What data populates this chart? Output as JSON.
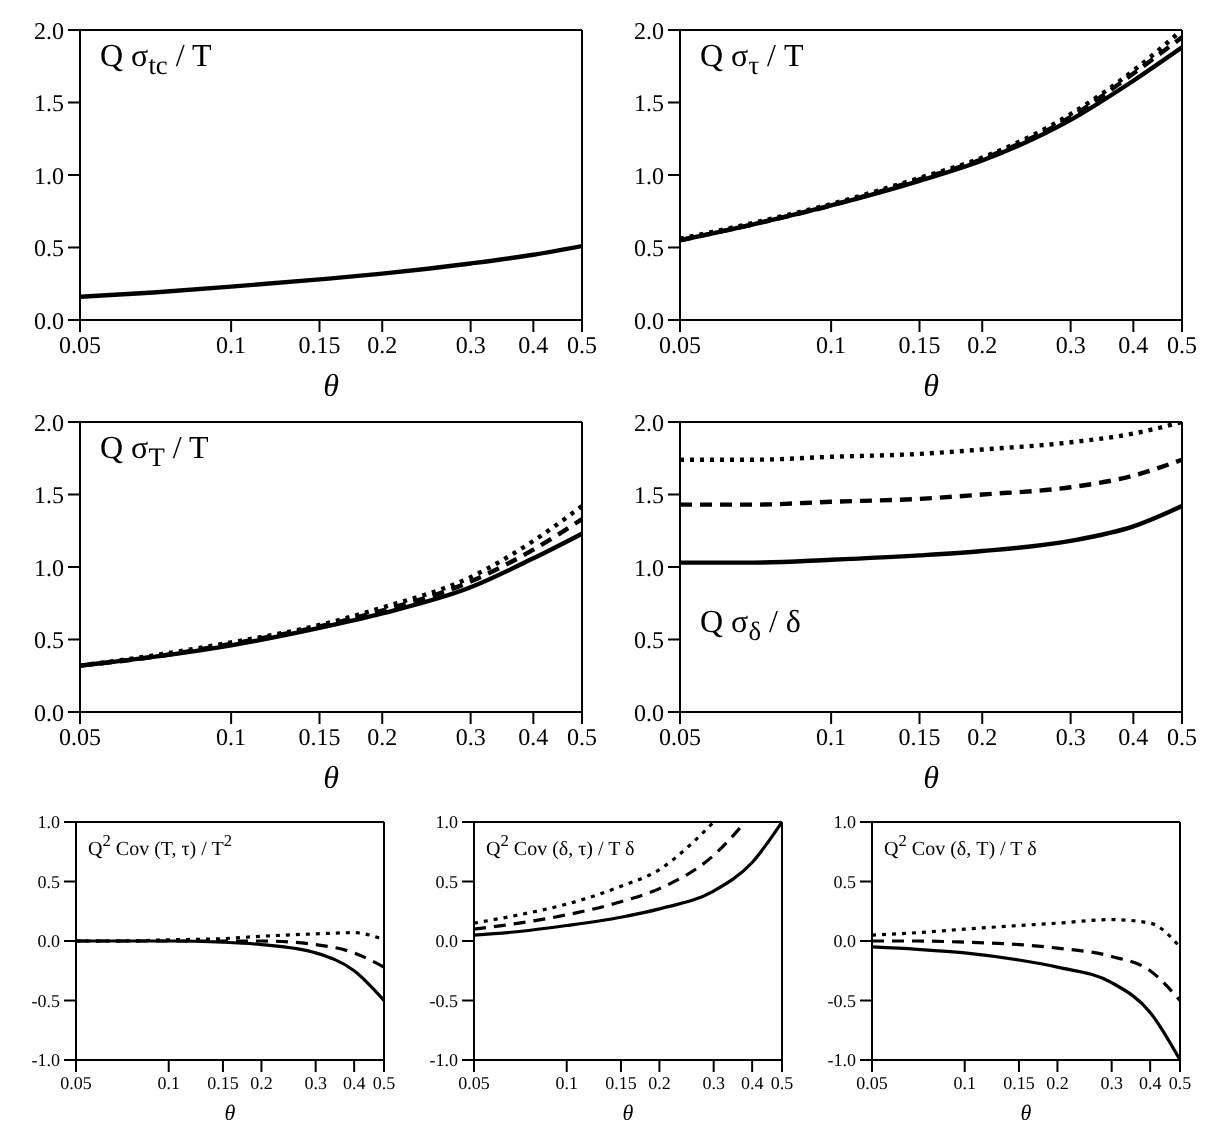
{
  "chart_data": [
    {
      "type": "line",
      "ylabel": "Q σ$_{tc}$ / T",
      "xlabel": "θ",
      "log": "x",
      "xlim": [
        0.05,
        0.5
      ],
      "xticks": [
        0.05,
        0.1,
        0.15,
        0.2,
        0.3,
        0.4,
        0.5
      ],
      "ylim": [
        0,
        2
      ],
      "yticks": [
        {
          "value": 0,
          "label": "0.0"
        },
        {
          "value": 0.5,
          "label": "0.5"
        },
        {
          "value": 1,
          "label": "1.0"
        },
        {
          "value": 1.5,
          "label": "1.5"
        },
        {
          "value": 2,
          "label": "2.0"
        }
      ],
      "grid": false,
      "legend": false,
      "x": [
        0.05,
        0.07,
        0.1,
        0.15,
        0.2,
        0.3,
        0.4,
        0.5
      ],
      "series": [
        {
          "color": "#000000",
          "line_style": "solid",
          "values": [
            0.16,
            0.19,
            0.23,
            0.28,
            0.32,
            0.39,
            0.45,
            0.51
          ]
        }
      ]
    },
    {
      "type": "line",
      "ylabel": "Q σ$_{τ}$ / T",
      "xlabel": "θ",
      "log": "x",
      "xlim": [
        0.05,
        0.5
      ],
      "xticks": [
        0.05,
        0.1,
        0.15,
        0.2,
        0.3,
        0.4,
        0.5
      ],
      "ylim": [
        0,
        2
      ],
      "yticks": [
        {
          "value": 0,
          "label": "0.0"
        },
        {
          "value": 0.5,
          "label": "0.5"
        },
        {
          "value": 1,
          "label": "1.0"
        },
        {
          "value": 1.5,
          "label": "1.5"
        },
        {
          "value": 2,
          "label": "2.0"
        }
      ],
      "grid": false,
      "legend": false,
      "x": [
        0.05,
        0.07,
        0.1,
        0.15,
        0.2,
        0.3,
        0.4,
        0.5
      ],
      "series": [
        {
          "color": "#000000",
          "line_style": "solid",
          "values": [
            0.55,
            0.66,
            0.79,
            0.96,
            1.1,
            1.38,
            1.65,
            1.88
          ]
        },
        {
          "color": "#000000",
          "line_style": "dashed",
          "values": [
            0.55,
            0.66,
            0.79,
            0.97,
            1.11,
            1.4,
            1.7,
            1.95
          ]
        },
        {
          "color": "#000000",
          "line_style": "dotted",
          "values": [
            0.56,
            0.67,
            0.8,
            0.98,
            1.12,
            1.42,
            1.72,
            2.0
          ]
        }
      ]
    },
    {
      "type": "line",
      "ylabel": "Q σ$_{T}$ / T",
      "xlabel": "θ",
      "log": "x",
      "xlim": [
        0.05,
        0.5
      ],
      "xticks": [
        0.05,
        0.1,
        0.15,
        0.2,
        0.3,
        0.4,
        0.5
      ],
      "ylim": [
        0,
        2
      ],
      "yticks": [
        {
          "value": 0,
          "label": "0.0"
        },
        {
          "value": 0.5,
          "label": "0.5"
        },
        {
          "value": 1,
          "label": "1.0"
        },
        {
          "value": 1.5,
          "label": "1.5"
        },
        {
          "value": 2,
          "label": "2.0"
        }
      ],
      "grid": false,
      "legend": false,
      "x": [
        0.05,
        0.07,
        0.1,
        0.15,
        0.2,
        0.3,
        0.4,
        0.5
      ],
      "series": [
        {
          "color": "#000000",
          "line_style": "solid",
          "values": [
            0.32,
            0.38,
            0.46,
            0.58,
            0.68,
            0.86,
            1.06,
            1.23
          ]
        },
        {
          "color": "#000000",
          "line_style": "dashed",
          "values": [
            0.32,
            0.38,
            0.47,
            0.59,
            0.7,
            0.9,
            1.12,
            1.33
          ]
        },
        {
          "color": "#000000",
          "line_style": "dotted",
          "values": [
            0.32,
            0.39,
            0.48,
            0.6,
            0.72,
            0.93,
            1.18,
            1.42
          ]
        }
      ]
    },
    {
      "type": "line",
      "ylabel": "Q σ$_{δ}$ / δ",
      "xlabel": "θ",
      "log": "x",
      "xlim": [
        0.05,
        0.5
      ],
      "xticks": [
        0.05,
        0.1,
        0.15,
        0.2,
        0.3,
        0.4,
        0.5
      ],
      "ylim": [
        0,
        2
      ],
      "yticks": [
        {
          "value": 0,
          "label": "0.0"
        },
        {
          "value": 0.5,
          "label": "0.5"
        },
        {
          "value": 1,
          "label": "1.0"
        },
        {
          "value": 1.5,
          "label": "1.5"
        },
        {
          "value": 2,
          "label": "2.0"
        }
      ],
      "grid": false,
      "legend": false,
      "x": [
        0.05,
        0.07,
        0.1,
        0.15,
        0.2,
        0.3,
        0.4,
        0.5
      ],
      "series": [
        {
          "color": "#000000",
          "line_style": "solid",
          "values": [
            1.03,
            1.03,
            1.05,
            1.08,
            1.11,
            1.18,
            1.28,
            1.42
          ]
        },
        {
          "color": "#000000",
          "line_style": "dashed",
          "values": [
            1.43,
            1.43,
            1.45,
            1.47,
            1.5,
            1.55,
            1.63,
            1.74
          ]
        },
        {
          "color": "#000000",
          "line_style": "dotted",
          "values": [
            1.74,
            1.74,
            1.76,
            1.78,
            1.81,
            1.86,
            1.92,
            2.0
          ]
        }
      ]
    },
    {
      "type": "line",
      "ylabel": "Q$^{2}$ Cov (T, τ) / T$^{2}$",
      "xlabel": "θ",
      "log": "x",
      "xlim": [
        0.05,
        0.5
      ],
      "xticks": [
        0.05,
        0.1,
        0.15,
        0.2,
        0.3,
        0.4,
        0.5
      ],
      "ylim": [
        -1,
        1
      ],
      "yticks": [
        {
          "value": -1,
          "label": "-1.0"
        },
        {
          "value": -0.5,
          "label": "-0.5"
        },
        {
          "value": 0,
          "label": "0.0"
        },
        {
          "value": 0.5,
          "label": "0.5"
        },
        {
          "value": 1,
          "label": "1.0"
        }
      ],
      "grid": false,
      "legend": false,
      "x": [
        0.05,
        0.07,
        0.1,
        0.15,
        0.2,
        0.3,
        0.4,
        0.5
      ],
      "series": [
        {
          "color": "#000000",
          "line_style": "solid",
          "values": [
            0,
            0,
            0,
            -0.01,
            -0.03,
            -0.1,
            -0.25,
            -0.5
          ]
        },
        {
          "color": "#000000",
          "line_style": "dashed",
          "values": [
            0,
            0,
            0,
            0,
            0,
            -0.03,
            -0.1,
            -0.22
          ]
        },
        {
          "color": "#000000",
          "line_style": "dotted",
          "values": [
            0,
            0,
            0.01,
            0.02,
            0.04,
            0.06,
            0.07,
            0.01
          ]
        }
      ]
    },
    {
      "type": "line",
      "ylabel": "Q$^{2}$ Cov (δ, τ) / T δ",
      "xlabel": "θ",
      "log": "x",
      "xlim": [
        0.05,
        0.5
      ],
      "xticks": [
        0.05,
        0.1,
        0.15,
        0.2,
        0.3,
        0.4,
        0.5
      ],
      "ylim": [
        -1,
        1
      ],
      "yticks": [
        {
          "value": -1,
          "label": "-1.0"
        },
        {
          "value": -0.5,
          "label": "-0.5"
        },
        {
          "value": 0,
          "label": "0.0"
        },
        {
          "value": 0.5,
          "label": "0.5"
        },
        {
          "value": 1,
          "label": "1.0"
        }
      ],
      "grid": false,
      "legend": false,
      "series": [
        {
          "color": "#000000",
          "line_style": "solid",
          "x": [
            0.05,
            0.07,
            0.1,
            0.15,
            0.2,
            0.3,
            0.4,
            0.5
          ],
          "values": [
            0.05,
            0.08,
            0.13,
            0.2,
            0.27,
            0.42,
            0.66,
            1.0
          ]
        },
        {
          "color": "#000000",
          "line_style": "dashed",
          "x": [
            0.05,
            0.07,
            0.1,
            0.15,
            0.2,
            0.3,
            0.38
          ],
          "values": [
            0.1,
            0.15,
            0.22,
            0.33,
            0.44,
            0.72,
            1.0
          ]
        },
        {
          "color": "#000000",
          "line_style": "dotted",
          "x": [
            0.05,
            0.07,
            0.1,
            0.15,
            0.2,
            0.25,
            0.3
          ],
          "values": [
            0.15,
            0.22,
            0.31,
            0.46,
            0.6,
            0.8,
            1.0
          ]
        }
      ]
    },
    {
      "type": "line",
      "ylabel": "Q$^{2}$ Cov (δ, T) / T δ",
      "xlabel": "θ",
      "log": "x",
      "xlim": [
        0.05,
        0.5
      ],
      "xticks": [
        0.05,
        0.1,
        0.15,
        0.2,
        0.3,
        0.4,
        0.5
      ],
      "ylim": [
        -1,
        1
      ],
      "yticks": [
        {
          "value": -1,
          "label": "-1.0"
        },
        {
          "value": -0.5,
          "label": "-0.5"
        },
        {
          "value": 0,
          "label": "0.0"
        },
        {
          "value": 0.5,
          "label": "0.5"
        },
        {
          "value": 1,
          "label": "1.0"
        }
      ],
      "grid": false,
      "legend": false,
      "x": [
        0.05,
        0.07,
        0.1,
        0.15,
        0.2,
        0.3,
        0.4,
        0.5
      ],
      "series": [
        {
          "color": "#000000",
          "line_style": "solid",
          "values": [
            -0.05,
            -0.07,
            -0.1,
            -0.16,
            -0.22,
            -0.35,
            -0.6,
            -1.0
          ]
        },
        {
          "color": "#000000",
          "line_style": "dashed",
          "values": [
            0,
            0,
            -0.01,
            -0.03,
            -0.06,
            -0.13,
            -0.25,
            -0.5
          ]
        },
        {
          "color": "#000000",
          "line_style": "dotted",
          "values": [
            0.05,
            0.07,
            0.1,
            0.13,
            0.15,
            0.18,
            0.15,
            -0.05
          ]
        }
      ]
    }
  ]
}
